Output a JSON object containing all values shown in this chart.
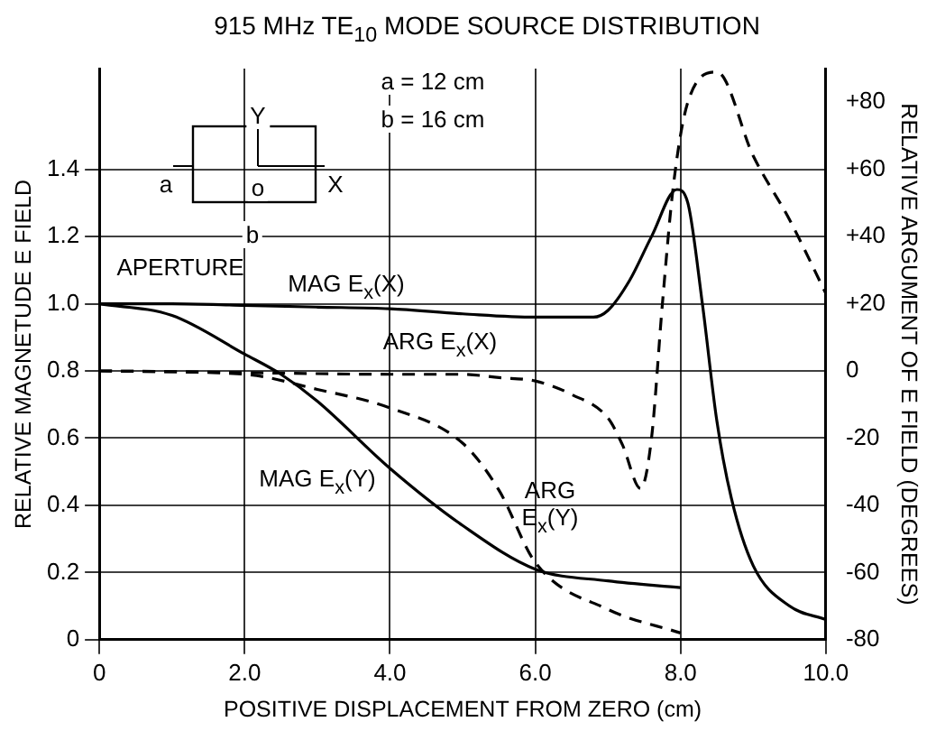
{
  "chart_data": {
    "type": "line",
    "title": "915 MHz TE$_{10}$ MODE SOURCE DISTRIBUTION",
    "xlabel": "POSITIVE DISPLACEMENT FROM ZERO (cm)",
    "ylabel": "RELATIVE MAGNETUDE E FIELD",
    "y2label": "RELATIVE ARGUMENT OF E FIELD (DEGREES)",
    "xlim": [
      0,
      10
    ],
    "xticks": [
      0,
      {
        "value": 2,
        "label": "2.0"
      },
      {
        "value": 4,
        "label": "4.0"
      },
      {
        "value": 6,
        "label": "6.0"
      },
      {
        "value": 8,
        "label": "8.0"
      },
      {
        "value": 10,
        "label": "10.0"
      }
    ],
    "ylim": [
      0,
      1.7
    ],
    "yticks": [
      0,
      0.2,
      0.4,
      0.6,
      0.8,
      {
        "value": 1,
        "label": "1.0"
      },
      1.2,
      1.4
    ],
    "y2lim": [
      -80,
      90
    ],
    "y2ticks": [
      -80,
      -60,
      -40,
      -20,
      0,
      {
        "value": 20,
        "label": "+20"
      },
      {
        "value": 40,
        "label": "+40"
      },
      {
        "value": 60,
        "label": "+60"
      },
      {
        "value": 80,
        "label": "+80"
      }
    ],
    "grid": true,
    "legend": false,
    "marker": "none",
    "series": [
      {
        "color": "#000000",
        "line_style": "solid",
        "x": [
          0,
          1,
          2,
          3,
          4,
          5,
          6,
          6.8,
          7.0,
          7.3,
          7.6,
          7.95,
          8.1,
          8.3,
          8.5,
          8.7,
          9.0,
          9.5,
          10
        ],
        "values": [
          1.0,
          1.0,
          0.995,
          0.99,
          0.985,
          0.97,
          0.96,
          0.96,
          0.98,
          1.07,
          1.2,
          1.34,
          1.3,
          1.0,
          0.65,
          0.42,
          0.22,
          0.1,
          0.06
        ]
      },
      {
        "color": "#000000",
        "line_style": "dashed",
        "axis": "y2",
        "x": [
          0,
          2,
          4,
          5,
          5.5,
          6,
          6.5,
          7,
          7.2,
          7.45,
          7.6,
          7.75,
          7.9,
          8.1,
          8.5,
          9,
          9.5,
          10
        ],
        "values": [
          0,
          -0.5,
          -1,
          -1,
          -2,
          -3,
          -7,
          -14,
          -22,
          -35,
          -20,
          20,
          55,
          80,
          89,
          64,
          45,
          23
        ]
      },
      {
        "color": "#000000",
        "line_style": "solid",
        "x": [
          0,
          1,
          2,
          2.5,
          3,
          4,
          5,
          6,
          7,
          8
        ],
        "values": [
          1.0,
          0.965,
          0.85,
          0.79,
          0.71,
          0.51,
          0.34,
          0.21,
          0.175,
          0.155
        ]
      },
      {
        "color": "#000000",
        "line_style": "dashed",
        "axis": "y2",
        "x": [
          0,
          2,
          3,
          4,
          5,
          5.5,
          6,
          7,
          8
        ],
        "values": [
          0,
          -1,
          -5.5,
          -11,
          -21.5,
          -35.5,
          -57,
          -71,
          -78
        ]
      }
    ],
    "annotations": [
      "MAG E$_{x}$(X)",
      "ARG E$_{x}$(X)",
      "MAG E$_{x}$(Y)",
      "ARG\nE$_{x}$(Y)",
      "a = 12 cm",
      "b = 16 cm",
      "APERTURE",
      "Y",
      "X",
      "o",
      "a",
      "b"
    ]
  }
}
